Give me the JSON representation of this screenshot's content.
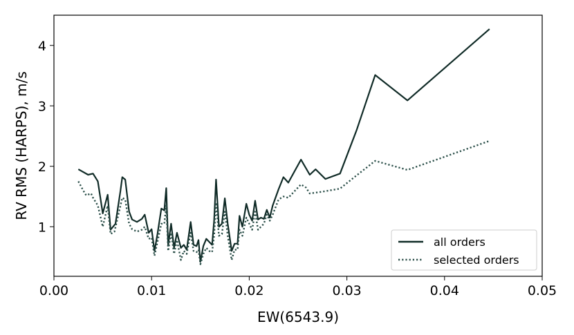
{
  "chart_data": {
    "type": "line",
    "xlabel": "EW(6543.9)",
    "ylabel": "RV RMS (HARPS), m/s",
    "xlim": [
      0.0,
      0.05
    ],
    "ylim": [
      0.18,
      4.5
    ],
    "xticks": [
      {
        "value": 0.0,
        "label": "0.00"
      },
      {
        "value": 0.01,
        "label": "0.01"
      },
      {
        "value": 0.02,
        "label": "0.02"
      },
      {
        "value": 0.03,
        "label": "0.03"
      },
      {
        "value": 0.04,
        "label": "0.04"
      },
      {
        "value": 0.05,
        "label": "0.05"
      }
    ],
    "yticks": [
      {
        "value": 1,
        "label": "1"
      },
      {
        "value": 2,
        "label": "2"
      },
      {
        "value": 3,
        "label": "3"
      },
      {
        "value": 4,
        "label": "4"
      }
    ],
    "grid": false,
    "legend_position": "lower-right",
    "series": [
      {
        "name": "all orders",
        "style": "solid",
        "color": "#0f2a26",
        "points": [
          [
            0.0025,
            1.95
          ],
          [
            0.0035,
            1.86
          ],
          [
            0.004,
            1.88
          ],
          [
            0.0045,
            1.75
          ],
          [
            0.005,
            1.22
          ],
          [
            0.0055,
            1.53
          ],
          [
            0.0058,
            0.95
          ],
          [
            0.0063,
            1.05
          ],
          [
            0.0068,
            1.58
          ],
          [
            0.007,
            1.82
          ],
          [
            0.0073,
            1.78
          ],
          [
            0.0077,
            1.25
          ],
          [
            0.008,
            1.12
          ],
          [
            0.0085,
            1.08
          ],
          [
            0.009,
            1.13
          ],
          [
            0.0093,
            1.2
          ],
          [
            0.0097,
            0.9
          ],
          [
            0.01,
            0.96
          ],
          [
            0.0103,
            0.6
          ],
          [
            0.0106,
            0.88
          ],
          [
            0.011,
            1.3
          ],
          [
            0.0113,
            1.27
          ],
          [
            0.0115,
            1.64
          ],
          [
            0.0117,
            0.7
          ],
          [
            0.012,
            1.05
          ],
          [
            0.0123,
            0.65
          ],
          [
            0.0126,
            0.9
          ],
          [
            0.013,
            0.65
          ],
          [
            0.0133,
            0.7
          ],
          [
            0.0136,
            0.62
          ],
          [
            0.014,
            1.08
          ],
          [
            0.0143,
            0.7
          ],
          [
            0.0146,
            0.68
          ],
          [
            0.0148,
            0.78
          ],
          [
            0.015,
            0.42
          ],
          [
            0.0153,
            0.68
          ],
          [
            0.0156,
            0.8
          ],
          [
            0.0159,
            0.75
          ],
          [
            0.0162,
            0.7
          ],
          [
            0.0164,
            1.1
          ],
          [
            0.0166,
            1.78
          ],
          [
            0.0169,
            1.0
          ],
          [
            0.0172,
            1.05
          ],
          [
            0.0175,
            1.47
          ],
          [
            0.0178,
            1.05
          ],
          [
            0.0182,
            0.6
          ],
          [
            0.0185,
            0.72
          ],
          [
            0.0188,
            0.72
          ],
          [
            0.019,
            1.18
          ],
          [
            0.0193,
            1.0
          ],
          [
            0.0197,
            1.38
          ],
          [
            0.02,
            1.2
          ],
          [
            0.0203,
            1.1
          ],
          [
            0.0206,
            1.43
          ],
          [
            0.0209,
            1.12
          ],
          [
            0.0212,
            1.15
          ],
          [
            0.0215,
            1.13
          ],
          [
            0.0218,
            1.28
          ],
          [
            0.0221,
            1.15
          ],
          [
            0.0224,
            1.35
          ],
          [
            0.023,
            1.62
          ],
          [
            0.0235,
            1.82
          ],
          [
            0.024,
            1.73
          ],
          [
            0.0253,
            2.11
          ],
          [
            0.0262,
            1.86
          ],
          [
            0.0268,
            1.95
          ],
          [
            0.0278,
            1.79
          ],
          [
            0.0293,
            1.88
          ],
          [
            0.031,
            2.6
          ],
          [
            0.0329,
            3.51
          ],
          [
            0.0362,
            3.09
          ],
          [
            0.0446,
            4.27
          ]
        ]
      },
      {
        "name": "selected orders",
        "style": "dotted",
        "color": "#2b4f49",
        "points": [
          [
            0.0025,
            1.75
          ],
          [
            0.003,
            1.6
          ],
          [
            0.0033,
            1.52
          ],
          [
            0.0038,
            1.55
          ],
          [
            0.004,
            1.48
          ],
          [
            0.0045,
            1.35
          ],
          [
            0.005,
            1.0
          ],
          [
            0.0055,
            1.35
          ],
          [
            0.0058,
            0.88
          ],
          [
            0.0062,
            0.92
          ],
          [
            0.0066,
            1.2
          ],
          [
            0.007,
            1.48
          ],
          [
            0.0073,
            1.45
          ],
          [
            0.0077,
            1.05
          ],
          [
            0.008,
            0.96
          ],
          [
            0.0085,
            0.92
          ],
          [
            0.009,
            0.95
          ],
          [
            0.0093,
            1.0
          ],
          [
            0.0097,
            0.8
          ],
          [
            0.01,
            0.82
          ],
          [
            0.0103,
            0.52
          ],
          [
            0.0106,
            0.75
          ],
          [
            0.011,
            1.05
          ],
          [
            0.0113,
            1.05
          ],
          [
            0.0115,
            1.35
          ],
          [
            0.0117,
            0.6
          ],
          [
            0.012,
            0.9
          ],
          [
            0.0123,
            0.55
          ],
          [
            0.0126,
            0.78
          ],
          [
            0.013,
            0.45
          ],
          [
            0.0133,
            0.6
          ],
          [
            0.0136,
            0.55
          ],
          [
            0.014,
            0.9
          ],
          [
            0.0143,
            0.6
          ],
          [
            0.0146,
            0.58
          ],
          [
            0.0148,
            0.62
          ],
          [
            0.015,
            0.38
          ],
          [
            0.0153,
            0.55
          ],
          [
            0.0156,
            0.65
          ],
          [
            0.0159,
            0.6
          ],
          [
            0.0162,
            0.58
          ],
          [
            0.0164,
            0.85
          ],
          [
            0.0166,
            1.4
          ],
          [
            0.0169,
            0.85
          ],
          [
            0.0172,
            0.88
          ],
          [
            0.0175,
            1.25
          ],
          [
            0.0178,
            0.85
          ],
          [
            0.0182,
            0.45
          ],
          [
            0.0185,
            0.62
          ],
          [
            0.0188,
            0.62
          ],
          [
            0.019,
            0.95
          ],
          [
            0.0193,
            0.85
          ],
          [
            0.0197,
            1.15
          ],
          [
            0.02,
            1.05
          ],
          [
            0.0203,
            0.95
          ],
          [
            0.0206,
            1.25
          ],
          [
            0.0209,
            0.95
          ],
          [
            0.0212,
            1.0
          ],
          [
            0.0215,
            1.05
          ],
          [
            0.0218,
            1.2
          ],
          [
            0.0221,
            1.1
          ],
          [
            0.0224,
            1.2
          ],
          [
            0.023,
            1.45
          ],
          [
            0.0235,
            1.5
          ],
          [
            0.024,
            1.48
          ],
          [
            0.0253,
            1.7
          ],
          [
            0.0258,
            1.65
          ],
          [
            0.0262,
            1.55
          ],
          [
            0.0275,
            1.58
          ],
          [
            0.0293,
            1.63
          ],
          [
            0.031,
            1.85
          ],
          [
            0.0329,
            2.09
          ],
          [
            0.0362,
            1.94
          ],
          [
            0.0446,
            2.42
          ]
        ]
      }
    ]
  }
}
